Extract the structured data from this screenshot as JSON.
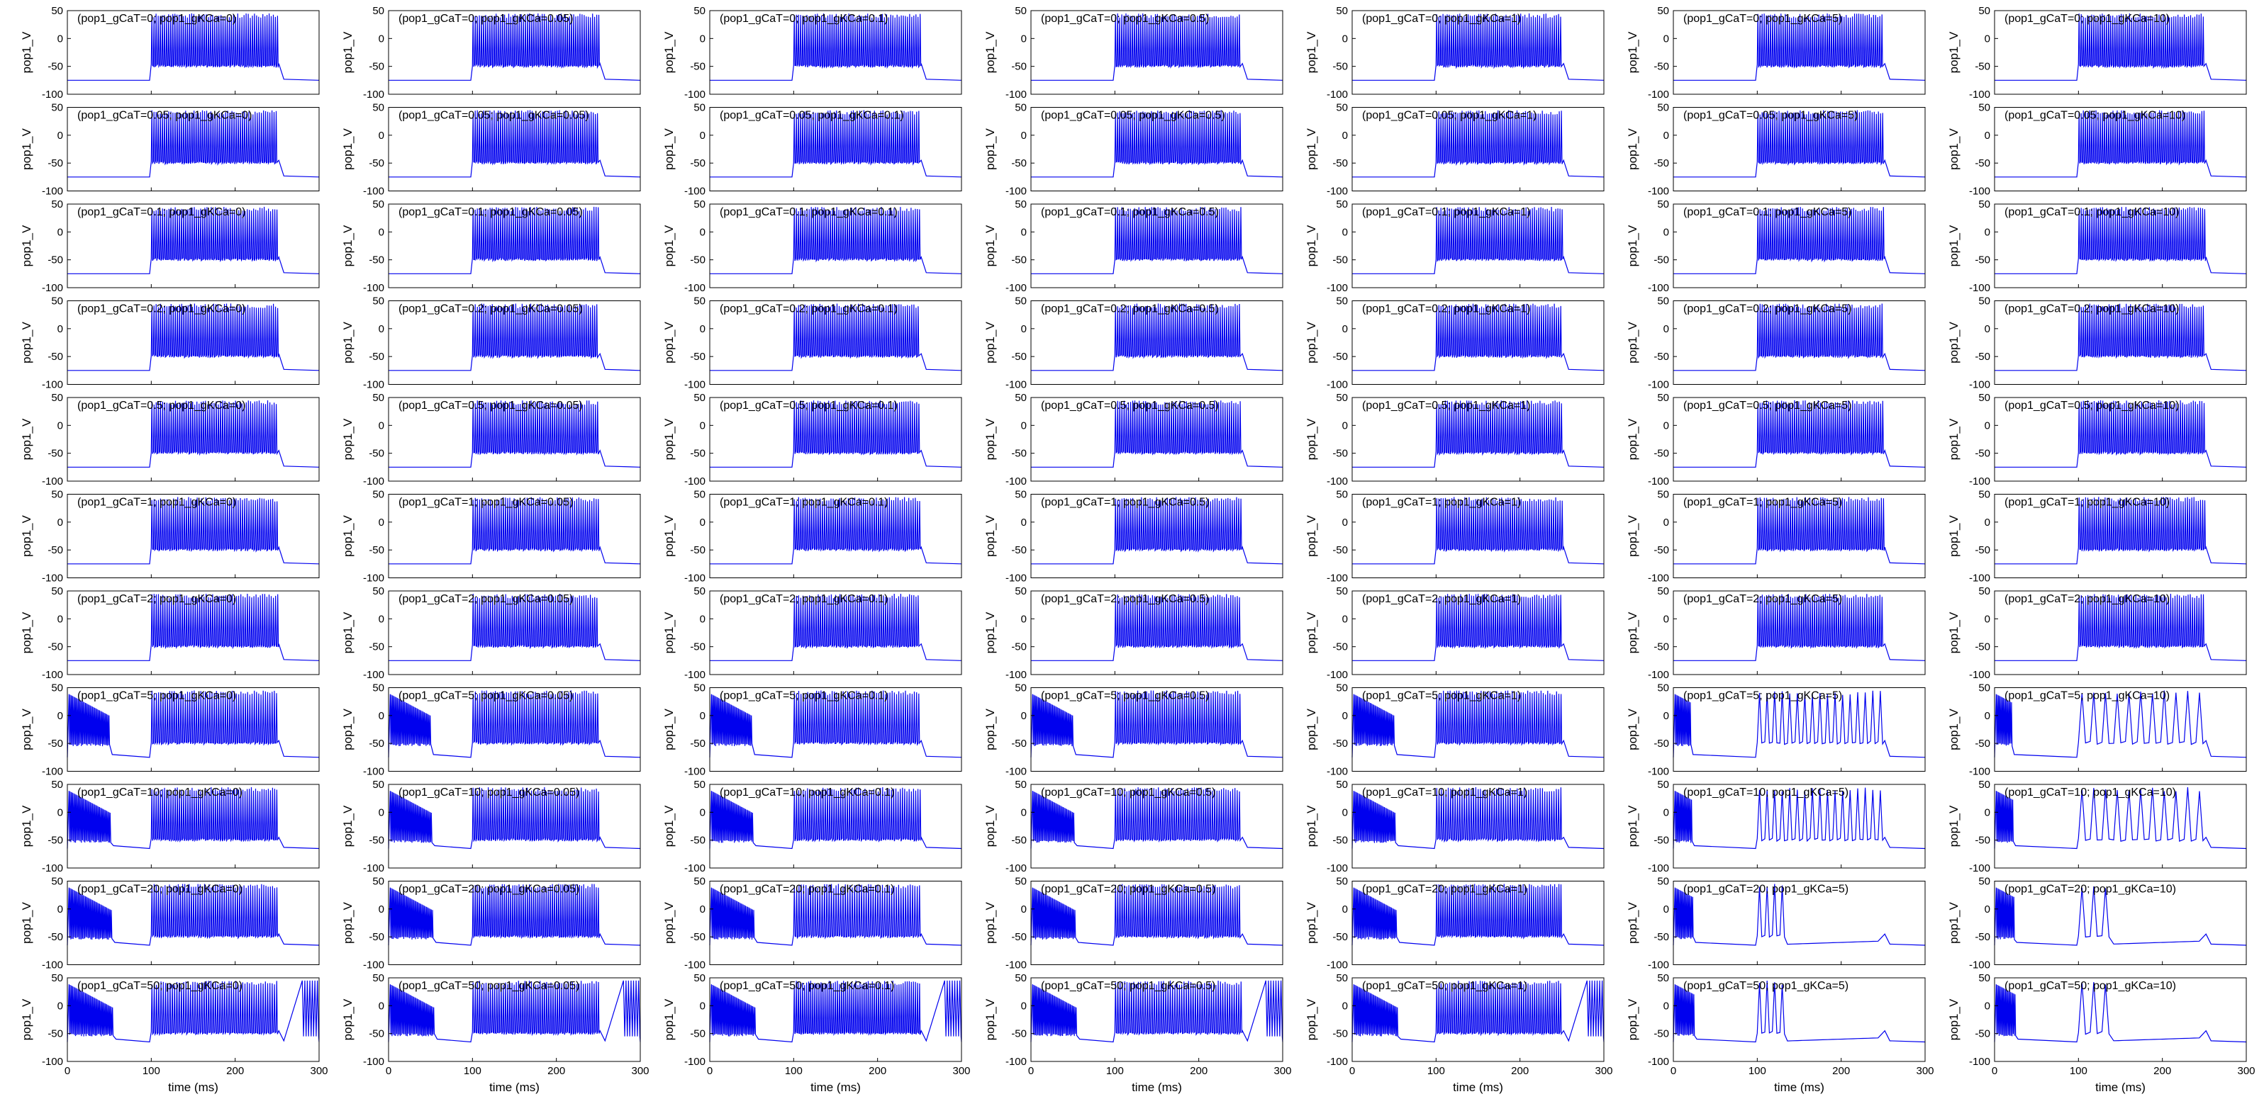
{
  "figure": {
    "col_gKCa": [
      "0",
      "0.05",
      "0.1",
      "0.5",
      "1",
      "5",
      "10"
    ],
    "row_gCaT": [
      "0",
      "0.05",
      "0.1",
      "0.2",
      "0.5",
      "1",
      "2",
      "5",
      "10",
      "20",
      "50"
    ]
  },
  "chart_data": {
    "type": "line",
    "layout": "grid of 11 rows x 7 columns of small multiples",
    "ylabel": "pop1_V",
    "xlabel": "time (ms)",
    "xlim": [
      0,
      300
    ],
    "ylim": [
      -100,
      50
    ],
    "xticks": [
      "0",
      "100",
      "200",
      "300"
    ],
    "yticks": [
      "50",
      "0",
      "-50",
      "-100"
    ],
    "line_color": "#0000ee",
    "subplots_title_pattern": "(pop1_gCaT=R; pop1_gKCa=C)",
    "titles": [
      [
        "(pop1_gCaT=0; pop1_gKCa=0)",
        "(pop1_gCaT=0; pop1_gKCa=0.05)",
        "(pop1_gCaT=0; pop1_gKCa=0.1)",
        "(pop1_gCaT=0; pop1_gKCa=0.5)",
        "(pop1_gCaT=0; pop1_gKCa=1)",
        "(pop1_gCaT=0; pop1_gKCa=5)",
        "(pop1_gCaT=0; pop1_gKCa=10)"
      ],
      [
        "(pop1_gCaT=0.05; pop1_gKCa=0)",
        "(pop1_gCaT=0.05; pop1_gKCa=0.05)",
        "(pop1_gCaT=0.05; pop1_gKCa=0.1)",
        "(pop1_gCaT=0.05; pop1_gKCa=0.5)",
        "(pop1_gCaT=0.05; pop1_gKCa=1)",
        "(pop1_gCaT=0.05; pop1_gKCa=5)",
        "(pop1_gCaT=0.05; pop1_gKCa=10)"
      ],
      [
        "(pop1_gCaT=0.1; pop1_gKCa=0)",
        "(pop1_gCaT=0.1; pop1_gKCa=0.05)",
        "(pop1_gCaT=0.1; pop1_gKCa=0.1)",
        "(pop1_gCaT=0.1; pop1_gKCa=0.5)",
        "(pop1_gCaT=0.1; pop1_gKCa=1)",
        "(pop1_gCaT=0.1; pop1_gKCa=5)",
        "(pop1_gCaT=0.1; pop1_gKCa=10)"
      ],
      [
        "(pop1_gCaT=0.2; pop1_gKCa=0)",
        "(pop1_gCaT=0.2; pop1_gKCa=0.05)",
        "(pop1_gCaT=0.2; pop1_gKCa=0.1)",
        "(pop1_gCaT=0.2; pop1_gKCa=0.5)",
        "(pop1_gCaT=0.2; pop1_gKCa=1)",
        "(pop1_gCaT=0.2; pop1_gKCa=5)",
        "(pop1_gCaT=0.2; pop1_gKCa=10)"
      ],
      [
        "(pop1_gCaT=0.5; pop1_gKCa=0)",
        "(pop1_gCaT=0.5; pop1_gKCa=0.05)",
        "(pop1_gCaT=0.5; pop1_gKCa=0.1)",
        "(pop1_gCaT=0.5; pop1_gKCa=0.5)",
        "(pop1_gCaT=0.5; pop1_gKCa=1)",
        "(pop1_gCaT=0.5; pop1_gKCa=5)",
        "(pop1_gCaT=0.5; pop1_gKCa=10)"
      ],
      [
        "(pop1_gCaT=1; pop1_gKCa=0)",
        "(pop1_gCaT=1; pop1_gKCa=0.05)",
        "(pop1_gCaT=1; pop1_gKCa=0.1)",
        "(pop1_gCaT=1; pop1_gKCa=0.5)",
        "(pop1_gCaT=1; pop1_gKCa=1)",
        "(pop1_gCaT=1; pop1_gKCa=5)",
        "(pop1_gCaT=1; pop1_gKCa=10)"
      ],
      [
        "(pop1_gCaT=2; pop1_gKCa=0)",
        "(pop1_gCaT=2; pop1_gKCa=0.05)",
        "(pop1_gCaT=2; pop1_gKCa=0.1)",
        "(pop1_gCaT=2; pop1_gKCa=0.5)",
        "(pop1_gCaT=2; pop1_gKCa=1)",
        "(pop1_gCaT=2; pop1_gKCa=5)",
        "(pop1_gCaT=2; pop1_gKCa=10)"
      ],
      [
        "(pop1_gCaT=5; pop1_gKCa=0)",
        "(pop1_gCaT=5; pop1_gKCa=0.05)",
        "(pop1_gCaT=5; pop1_gKCa=0.1)",
        "(pop1_gCaT=5; pop1_gKCa=0.5)",
        "(pop1_gCaT=5; pop1_gKCa=1)",
        "(pop1_gCaT=5; pop1_gKCa=5)",
        "(pop1_gCaT=5; pop1_gKCa=10)"
      ],
      [
        "(pop1_gCaT=10; pop1_gKCa=0)",
        "(pop1_gCaT=10; pop1_gKCa=0.05)",
        "(pop1_gCaT=10; pop1_gKCa=0.1)",
        "(pop1_gCaT=10; pop1_gKCa=0.5)",
        "(pop1_gCaT=10; pop1_gKCa=1)",
        "(pop1_gCaT=10; pop1_gKCa=5)",
        "(pop1_gCaT=10; pop1_gKCa=10)"
      ],
      [
        "(pop1_gCaT=20; pop1_gKCa=0)",
        "(pop1_gCaT=20; pop1_gKCa=0.05)",
        "(pop1_gCaT=20; pop1_gKCa=0.1)",
        "(pop1_gCaT=20; pop1_gKCa=0.5)",
        "(pop1_gCaT=20; pop1_gKCa=1)",
        "(pop1_gCaT=20; pop1_gKCa=5)",
        "(pop1_gCaT=20; pop1_gKCa=10)"
      ],
      [
        "(pop1_gCaT=50; pop1_gKCa=0)",
        "(pop1_gCaT=50; pop1_gKCa=0.05)",
        "(pop1_gCaT=50; pop1_gKCa=0.1)",
        "(pop1_gCaT=50; pop1_gKCa=0.5)",
        "(pop1_gCaT=50; pop1_gKCa=1)",
        "(pop1_gCaT=50; pop1_gKCa=5)",
        "(pop1_gCaT=50; pop1_gKCa=10)"
      ]
    ],
    "stimulus_window_ms": [
      100,
      250
    ],
    "resting_potential_mV": -75,
    "spike_peak_mV": 45,
    "spike_trough_mV": -50
  }
}
